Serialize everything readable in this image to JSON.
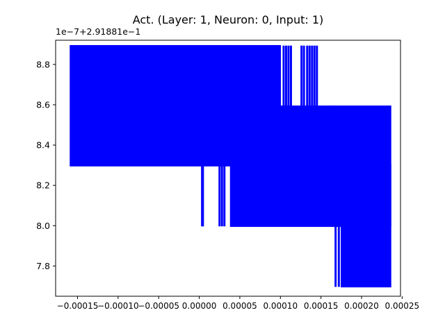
{
  "chart_data": {
    "type": "line",
    "title": "Act. (Layer: 1, Neuron: 0, Input: 1)",
    "xlabel": "",
    "ylabel": "",
    "y_offset_label": "1e−7+2.91881e−1",
    "xlim": [
      -0.000177,
      0.000248
    ],
    "ylim": [
      7.65,
      8.92
    ],
    "y_units_note": "",
    "x_ticks": [
      {
        "value": -0.00015,
        "label": "−0.00015"
      },
      {
        "value": -0.0001,
        "label": "−0.00010"
      },
      {
        "value": -5e-05,
        "label": "−0.00005"
      },
      {
        "value": 0.0,
        "label": "0.00000"
      },
      {
        "value": 5e-05,
        "label": "0.00005"
      },
      {
        "value": 0.0001,
        "label": "0.00010"
      },
      {
        "value": 0.00015,
        "label": "0.00015"
      },
      {
        "value": 0.0002,
        "label": "0.00020"
      },
      {
        "value": 0.00025,
        "label": "0.00025"
      }
    ],
    "y_ticks": [
      {
        "value": 7.8,
        "label": "7.8"
      },
      {
        "value": 8.0,
        "label": "8.0"
      },
      {
        "value": 8.2,
        "label": "8.2"
      },
      {
        "value": 8.4,
        "label": "8.4"
      },
      {
        "value": 8.6,
        "label": "8.6"
      },
      {
        "value": 8.8,
        "label": "8.8"
      }
    ],
    "grid": false,
    "series": [
      {
        "color": "#0000ff",
        "segments": [
          {
            "x_start": -0.000159,
            "x_end": 3.85e-05,
            "y_min": 8.3,
            "y_max": 8.89
          },
          {
            "x_start": 3.85e-05,
            "x_end": 6.6e-05,
            "y_min": 8.3,
            "y_max": 8.89
          },
          {
            "x_start": 6.6e-05,
            "x_end": 0.0001,
            "y_min": 8.3,
            "y_max": 8.89
          },
          {
            "x_start": 0.0001,
            "x_end": 0.000165,
            "y_min": 8.3,
            "y_max": 8.59
          },
          {
            "x_start": 3.85e-05,
            "x_end": 0.000175,
            "y_min": 8.0,
            "y_max": 8.3
          },
          {
            "x_start": 0.000165,
            "x_end": 0.000236,
            "y_min": 8.0,
            "y_max": 8.59
          },
          {
            "x_start": 0.000175,
            "x_end": 0.000236,
            "y_min": 7.7,
            "y_max": 8.3
          }
        ],
        "spikes": [
          {
            "x": 3.5e-06,
            "y_min": 8.0,
            "y_max": 8.3
          },
          {
            "x": 4.5e-06,
            "y_min": 8.0,
            "y_max": 8.3
          },
          {
            "x": 2.5e-05,
            "y_min": 8.0,
            "y_max": 8.3
          },
          {
            "x": 2.8e-05,
            "y_min": 8.0,
            "y_max": 8.3
          },
          {
            "x": 3.1e-05,
            "y_min": 8.0,
            "y_max": 8.3
          },
          {
            "x": 0.000104,
            "y_min": 8.3,
            "y_max": 8.89
          },
          {
            "x": 0.000107,
            "y_min": 8.3,
            "y_max": 8.89
          },
          {
            "x": 0.00011,
            "y_min": 8.3,
            "y_max": 8.89
          },
          {
            "x": 0.000113,
            "y_min": 8.3,
            "y_max": 8.89
          },
          {
            "x": 0.000126,
            "y_min": 8.3,
            "y_max": 8.89
          },
          {
            "x": 0.000129,
            "y_min": 8.3,
            "y_max": 8.89
          },
          {
            "x": 0.000133,
            "y_min": 8.3,
            "y_max": 8.89
          },
          {
            "x": 0.000136,
            "y_min": 8.3,
            "y_max": 8.89
          },
          {
            "x": 0.000139,
            "y_min": 8.3,
            "y_max": 8.89
          },
          {
            "x": 0.000142,
            "y_min": 8.3,
            "y_max": 8.89
          },
          {
            "x": 0.000145,
            "y_min": 8.3,
            "y_max": 8.89
          },
          {
            "x": 0.000168,
            "y_min": 7.7,
            "y_max": 8.3
          },
          {
            "x": 0.000172,
            "y_min": 7.7,
            "y_max": 8.3
          }
        ]
      }
    ]
  }
}
